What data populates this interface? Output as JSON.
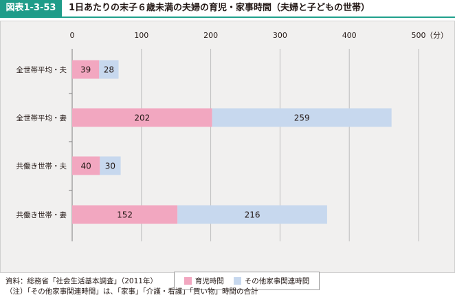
{
  "header": {
    "figure_label": "図表1-3-53",
    "title": "1日あたりの末子６歳未満の夫婦の育児・家事時間（夫婦と子どもの世帯）"
  },
  "chart_data": {
    "type": "bar",
    "orientation": "horizontal",
    "stacked": true,
    "categories": [
      "全世帯平均・夫",
      "全世帯平均・妻",
      "共働き世帯・夫",
      "共働き世帯・妻"
    ],
    "series": [
      {
        "name": "育児時間",
        "values": [
          39,
          202,
          40,
          152
        ],
        "color": "#f2a7c0"
      },
      {
        "name": "その他家事関連時間",
        "values": [
          28,
          259,
          30,
          216
        ],
        "color": "#c7d8ee"
      }
    ],
    "x_ticks": [
      0,
      100,
      200,
      300,
      400,
      500
    ],
    "unit_label": "（分）",
    "xlim": [
      0,
      500
    ],
    "axis_position": "top",
    "grid": true,
    "legend_position": "bottom"
  },
  "notes": {
    "source": "資料：総務省「社会生活基本調査」（2011年）",
    "note": "（注）「その他家事関連時間」は、「家事」「介護・看護」「買い物」時間の合計"
  }
}
